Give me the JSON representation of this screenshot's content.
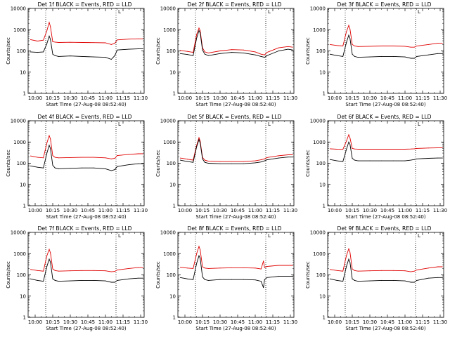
{
  "figure": {
    "x_axis_title": "Start Time (27-Aug-08 08:52:40)",
    "y_axis_title": "Counts/sec",
    "x_tick_labels": [
      "10:00",
      "10:15",
      "10:30",
      "10:45",
      "11:00",
      "11:15",
      "11:30"
    ],
    "y_tick_labels": [
      "1",
      "10",
      "100",
      "1000",
      "10000"
    ],
    "corner_mark": "L"
  },
  "colors": {
    "events": "#000000",
    "lld": "#e00000",
    "axes": "#000000"
  },
  "chart_data": [
    {
      "type": "line",
      "title": "Det 1f BLACK = Events, RED = LLD",
      "xlabel": "Start Time (27-Aug-08 08:52:40)",
      "ylabel": "Counts/sec",
      "x_range": [
        "09:54",
        "11:33"
      ],
      "ylim": [
        1,
        10000
      ],
      "y_scale": "log",
      "x": [
        "09:56",
        "10:02",
        "10:07",
        "10:10",
        "10:12",
        "10:13",
        "10:15",
        "10:17",
        "10:20",
        "10:30",
        "10:40",
        "10:50",
        "11:00",
        "11:05",
        "11:08",
        "11:10",
        "11:20",
        "11:28",
        "11:32"
      ],
      "markers_x": [
        "10:09",
        "11:09"
      ],
      "series": [
        {
          "name": "BLACK = Events",
          "values": [
            90,
            85,
            90,
            220,
            500,
            350,
            70,
            60,
            55,
            58,
            55,
            52,
            50,
            40,
            60,
            110,
            120,
            125,
            125
          ]
        },
        {
          "name": "RED = LLD",
          "values": [
            340,
            290,
            320,
            900,
            2200,
            1400,
            270,
            260,
            250,
            255,
            250,
            245,
            240,
            200,
            230,
            330,
            360,
            370,
            370
          ]
        }
      ]
    },
    {
      "type": "line",
      "title": "Det 2f BLACK = Events, RED = LLD",
      "xlabel": "Start Time (27-Aug-08 08:52:40)",
      "ylabel": "Counts/sec",
      "x_range": [
        "09:54",
        "11:33"
      ],
      "ylim": [
        1,
        10000
      ],
      "y_scale": "log",
      "x": [
        "09:56",
        "10:02",
        "10:07",
        "10:10",
        "10:12",
        "10:13",
        "10:15",
        "10:17",
        "10:20",
        "10:30",
        "10:40",
        "10:50",
        "11:00",
        "11:05",
        "11:08",
        "11:10",
        "11:20",
        "11:28",
        "11:32"
      ],
      "markers_x": [
        "10:09",
        "11:09"
      ],
      "series": [
        {
          "name": "BLACK = Events",
          "values": [
            75,
            68,
            60,
            400,
            900,
            700,
            110,
            70,
            60,
            75,
            85,
            80,
            65,
            55,
            50,
            60,
            100,
            120,
            110
          ]
        },
        {
          "name": "RED = LLD",
          "values": [
            105,
            95,
            85,
            600,
            1200,
            900,
            140,
            90,
            80,
            100,
            115,
            110,
            90,
            70,
            65,
            85,
            140,
            160,
            150
          ]
        }
      ]
    },
    {
      "type": "line",
      "title": "Det 3f BLACK = Events, RED = LLD",
      "xlabel": "Start Time (27-Aug-08 08:52:40)",
      "ylabel": "Counts/sec",
      "x_range": [
        "09:54",
        "11:33"
      ],
      "ylim": [
        1,
        10000
      ],
      "y_scale": "log",
      "x": [
        "09:56",
        "10:02",
        "10:07",
        "10:10",
        "10:12",
        "10:13",
        "10:15",
        "10:17",
        "10:20",
        "10:30",
        "10:40",
        "10:50",
        "11:00",
        "11:05",
        "11:08",
        "11:10",
        "11:20",
        "11:28",
        "11:32"
      ],
      "markers_x": [
        "10:09",
        "11:09"
      ],
      "series": [
        {
          "name": "BLACK = Events",
          "values": [
            70,
            60,
            55,
            250,
            550,
            400,
            70,
            55,
            50,
            52,
            55,
            55,
            52,
            45,
            45,
            55,
            65,
            75,
            75
          ]
        },
        {
          "name": "RED = LLD",
          "values": [
            200,
            180,
            170,
            800,
            1600,
            1100,
            200,
            170,
            160,
            165,
            170,
            170,
            165,
            150,
            150,
            170,
            200,
            230,
            230
          ]
        }
      ]
    },
    {
      "type": "line",
      "title": "Det 4f BLACK = Events, RED = LLD",
      "xlabel": "Start Time (27-Aug-08 08:52:40)",
      "ylabel": "Counts/sec",
      "x_range": [
        "09:54",
        "11:33"
      ],
      "ylim": [
        1,
        10000
      ],
      "y_scale": "log",
      "x": [
        "09:56",
        "10:02",
        "10:07",
        "10:10",
        "10:12",
        "10:13",
        "10:15",
        "10:17",
        "10:20",
        "10:30",
        "10:40",
        "10:50",
        "11:00",
        "11:05",
        "11:08",
        "11:10",
        "11:20",
        "11:28",
        "11:32"
      ],
      "markers_x": [
        "10:09",
        "11:09"
      ],
      "series": [
        {
          "name": "BLACK = Events",
          "values": [
            75,
            65,
            60,
            300,
            700,
            500,
            80,
            60,
            55,
            58,
            60,
            60,
            55,
            45,
            50,
            70,
            85,
            95,
            95
          ]
        },
        {
          "name": "RED = LLD",
          "values": [
            220,
            190,
            180,
            900,
            2000,
            1400,
            230,
            190,
            180,
            185,
            190,
            190,
            180,
            160,
            170,
            230,
            260,
            280,
            280
          ]
        }
      ]
    },
    {
      "type": "line",
      "title": "Det 5f BLACK = Events, RED = LLD",
      "xlabel": "Start Time (27-Aug-08 08:52:40)",
      "ylabel": "Counts/sec",
      "x_range": [
        "09:54",
        "11:33"
      ],
      "ylim": [
        1,
        10000
      ],
      "y_scale": "log",
      "x": [
        "09:56",
        "10:02",
        "10:07",
        "10:10",
        "10:12",
        "10:13",
        "10:15",
        "10:17",
        "10:20",
        "10:30",
        "10:40",
        "10:50",
        "11:00",
        "11:05",
        "11:08",
        "11:10",
        "11:20",
        "11:28",
        "11:32"
      ],
      "markers_x": [
        "10:09",
        "11:09"
      ],
      "series": [
        {
          "name": "BLACK = Events",
          "values": [
            140,
            120,
            110,
            600,
            1300,
            900,
            160,
            110,
            100,
            95,
            95,
            95,
            105,
            115,
            130,
            145,
            175,
            195,
            195
          ]
        },
        {
          "name": "RED = LLD",
          "values": [
            175,
            155,
            140,
            700,
            1600,
            1100,
            190,
            140,
            125,
            120,
            120,
            120,
            130,
            145,
            160,
            185,
            225,
            250,
            250
          ]
        }
      ]
    },
    {
      "type": "line",
      "title": "Det 6f BLACK = Events, RED = LLD",
      "xlabel": "Start Time (27-Aug-08 08:52:40)",
      "ylabel": "Counts/sec",
      "x_range": [
        "09:54",
        "11:33"
      ],
      "ylim": [
        1,
        10000
      ],
      "y_scale": "log",
      "x": [
        "09:56",
        "10:02",
        "10:07",
        "10:10",
        "10:12",
        "10:13",
        "10:15",
        "10:17",
        "10:20",
        "10:30",
        "10:40",
        "10:50",
        "11:00",
        "11:05",
        "11:08",
        "11:10",
        "11:20",
        "11:28",
        "11:32"
      ],
      "markers_x": [
        "10:09",
        "11:09"
      ],
      "series": [
        {
          "name": "BLACK = Events",
          "values": [
            150,
            130,
            120,
            450,
            1000,
            800,
            170,
            140,
            130,
            130,
            130,
            130,
            130,
            140,
            150,
            160,
            170,
            175,
            175
          ]
        },
        {
          "name": "RED = LLD",
          "values": [
            480,
            460,
            450,
            1100,
            2200,
            1600,
            500,
            470,
            460,
            460,
            460,
            460,
            460,
            470,
            480,
            500,
            520,
            530,
            530
          ]
        }
      ]
    },
    {
      "type": "line",
      "title": "Det 7f BLACK = Events, RED = LLD",
      "xlabel": "Start Time (27-Aug-08 08:52:40)",
      "ylabel": "Counts/sec",
      "x_range": [
        "09:54",
        "11:33"
      ],
      "ylim": [
        1,
        10000
      ],
      "y_scale": "log",
      "x": [
        "09:56",
        "10:02",
        "10:07",
        "10:10",
        "10:12",
        "10:13",
        "10:15",
        "10:17",
        "10:20",
        "10:30",
        "10:40",
        "10:50",
        "11:00",
        "11:05",
        "11:08",
        "11:10",
        "11:20",
        "11:28",
        "11:32"
      ],
      "markers_x": [
        "10:09",
        "11:09"
      ],
      "series": [
        {
          "name": "BLACK = Events",
          "values": [
            65,
            55,
            50,
            250,
            550,
            400,
            65,
            55,
            50,
            52,
            55,
            55,
            52,
            45,
            45,
            55,
            65,
            70,
            70
          ]
        },
        {
          "name": "RED = LLD",
          "values": [
            180,
            160,
            150,
            800,
            1600,
            1100,
            190,
            160,
            150,
            155,
            160,
            160,
            155,
            140,
            145,
            170,
            200,
            220,
            220
          ]
        }
      ]
    },
    {
      "type": "line",
      "title": "Det 8f BLACK = Events, RED = LLD",
      "xlabel": "Start Time (27-Aug-08 08:52:40)",
      "ylabel": "Counts/sec",
      "x_range": [
        "09:54",
        "11:33"
      ],
      "ylim": [
        1,
        10000
      ],
      "y_scale": "log",
      "x": [
        "09:56",
        "10:02",
        "10:07",
        "10:10",
        "10:12",
        "10:13",
        "10:15",
        "10:17",
        "10:20",
        "10:30",
        "10:40",
        "10:50",
        "11:00",
        "11:05",
        "11:07",
        "11:08",
        "11:10",
        "11:20",
        "11:32"
      ],
      "markers_x": [
        "10:09",
        "11:09"
      ],
      "series": [
        {
          "name": "BLACK = Events",
          "values": [
            75,
            65,
            60,
            350,
            800,
            600,
            80,
            60,
            55,
            60,
            60,
            60,
            58,
            50,
            25,
            60,
            75,
            85,
            85
          ]
        },
        {
          "name": "RED = LLD",
          "values": [
            230,
            210,
            200,
            1000,
            2200,
            1500,
            240,
            210,
            200,
            210,
            215,
            215,
            210,
            190,
            450,
            220,
            250,
            280,
            280
          ]
        }
      ]
    },
    {
      "type": "line",
      "title": "Det 9f BLACK = Events, RED = LLD",
      "xlabel": "Start Time (27-Aug-08 08:52:40)",
      "ylabel": "Counts/sec",
      "x_range": [
        "09:54",
        "11:33"
      ],
      "ylim": [
        1,
        10000
      ],
      "y_scale": "log",
      "x": [
        "09:56",
        "10:02",
        "10:07",
        "10:10",
        "10:12",
        "10:13",
        "10:15",
        "10:17",
        "10:20",
        "10:30",
        "10:40",
        "10:50",
        "11:00",
        "11:05",
        "11:08",
        "11:10",
        "11:20",
        "11:28",
        "11:32"
      ],
      "markers_x": [
        "10:09",
        "11:09"
      ],
      "series": [
        {
          "name": "BLACK = Events",
          "values": [
            65,
            55,
            50,
            250,
            550,
            400,
            65,
            55,
            50,
            52,
            55,
            55,
            52,
            45,
            45,
            55,
            70,
            75,
            75
          ]
        },
        {
          "name": "RED = LLD",
          "values": [
            180,
            160,
            150,
            800,
            1700,
            1200,
            190,
            160,
            150,
            155,
            160,
            160,
            155,
            140,
            150,
            170,
            210,
            240,
            240
          ]
        }
      ]
    }
  ]
}
